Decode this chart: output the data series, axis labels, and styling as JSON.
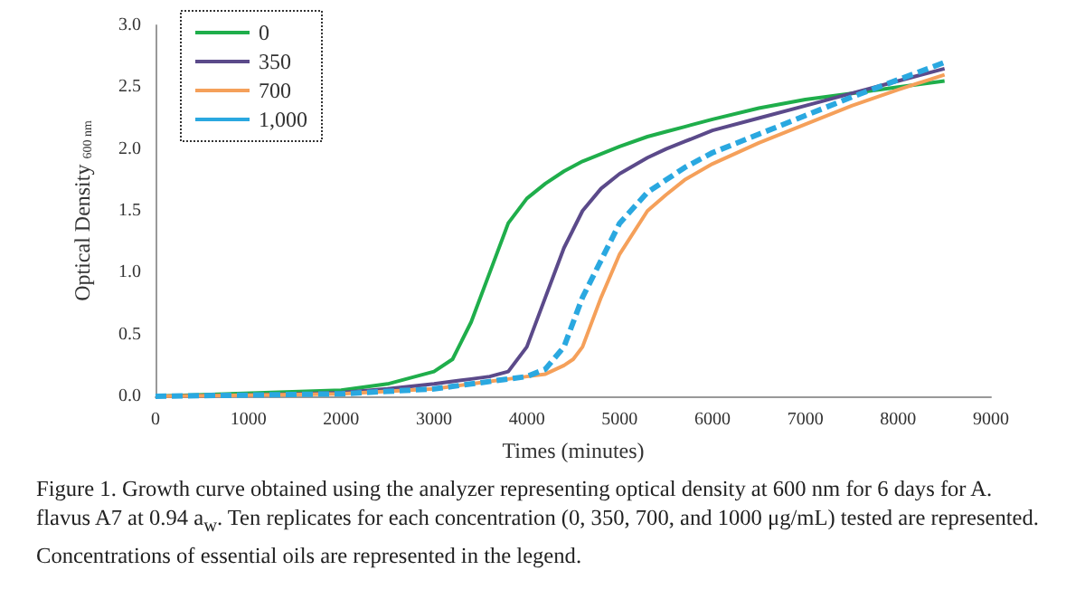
{
  "chart_data": {
    "type": "line",
    "xlabel": "Times (minutes)",
    "ylabel": "Optical Density $_{600 nm}$",
    "x": [
      0,
      1000,
      2000,
      2500,
      3000,
      3200,
      3400,
      3600,
      3800,
      4000,
      4200,
      4400,
      4500,
      4600,
      4800,
      5000,
      5300,
      5500,
      5700,
      6000,
      6500,
      7000,
      7500,
      8000,
      8500
    ],
    "series": [
      {
        "name": "0",
        "color": "#1fae4b",
        "line_style": "solid",
        "values": [
          0,
          null,
          0.05,
          0.1,
          0.2,
          0.3,
          0.6,
          1.0,
          1.4,
          1.6,
          1.72,
          1.82,
          1.86,
          1.9,
          1.96,
          2.02,
          2.1,
          2.14,
          2.18,
          2.24,
          2.33,
          2.4,
          2.45,
          2.5,
          2.55
        ]
      },
      {
        "name": "350",
        "color": "#5b4a8a",
        "line_style": "solid",
        "values": [
          0,
          0.01,
          0.03,
          0.06,
          0.1,
          0.12,
          0.14,
          0.16,
          0.2,
          0.4,
          0.8,
          1.2,
          1.35,
          1.5,
          1.68,
          1.8,
          1.93,
          2.0,
          2.06,
          2.15,
          2.25,
          2.35,
          2.45,
          2.55,
          2.65
        ]
      },
      {
        "name": "700",
        "color": "#f5a05a",
        "line_style": "solid",
        "values": [
          0,
          0.01,
          0.02,
          0.04,
          0.06,
          0.08,
          0.1,
          0.12,
          0.14,
          0.16,
          0.18,
          0.25,
          0.3,
          0.4,
          0.8,
          1.15,
          1.5,
          1.63,
          1.75,
          1.88,
          2.05,
          2.2,
          2.35,
          2.48,
          2.6
        ]
      },
      {
        "name": "1,000",
        "color": "#2aa8e0",
        "line_style": "dashed",
        "values": [
          0,
          0.01,
          0.02,
          0.04,
          0.06,
          0.08,
          0.1,
          0.12,
          0.14,
          0.16,
          0.22,
          0.4,
          0.6,
          0.8,
          1.1,
          1.4,
          1.65,
          1.75,
          1.85,
          1.97,
          2.12,
          2.27,
          2.42,
          2.56,
          2.7
        ]
      }
    ],
    "xlim": [
      0,
      9000
    ],
    "xticks": [
      0,
      1000,
      2000,
      3000,
      4000,
      5000,
      6000,
      7000,
      8000,
      9000
    ],
    "ylim": [
      0,
      3
    ],
    "yticks": [
      {
        "value": 0,
        "label": "0.0"
      },
      {
        "value": 0.5,
        "label": "0.5"
      },
      {
        "value": 1,
        "label": "1.0"
      },
      {
        "value": 1.5,
        "label": "1.5"
      },
      {
        "value": 2,
        "label": "2.0"
      },
      {
        "value": 2.5,
        "label": "2.5"
      },
      {
        "value": 3,
        "label": "3.0"
      }
    ],
    "grid": false,
    "legend": "top left",
    "marker": "none",
    "annotations": [
      "Figure 1. Growth curve obtained using the analyzer representing optical density at 600 nm for 6 days for A. flavus A7 at 0.94 a$_{w}$. Ten replicates for each concentration (0, 350, 700, and 1000 μg/mL) tested are represented. Concentrations of essential oils are represented in the legend."
    ]
  }
}
